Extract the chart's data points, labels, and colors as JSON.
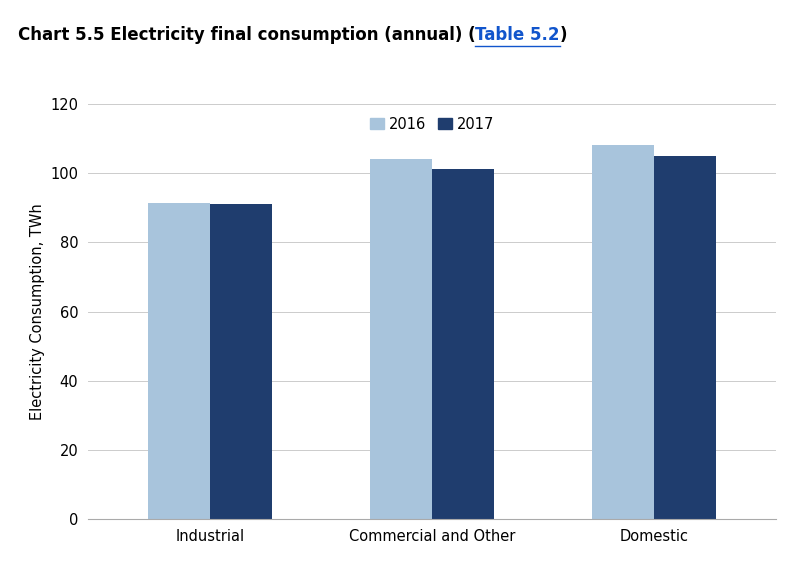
{
  "title_plain": "Chart 5.5 Electricity final consumption (annual) (",
  "title_link": "Table 5.2",
  "title_end": ")",
  "categories": [
    "Industrial",
    "Commercial and Other",
    "Domestic"
  ],
  "series": [
    {
      "label": "2016",
      "values": [
        91.5,
        104.0,
        108.0
      ],
      "color": "#a8c4dc"
    },
    {
      "label": "2017",
      "values": [
        91.2,
        101.2,
        105.0
      ],
      "color": "#1f3d6e"
    }
  ],
  "ylabel": "Electricity Consumption, TWh",
  "ylim": [
    0,
    120
  ],
  "yticks": [
    0,
    20,
    40,
    60,
    80,
    100,
    120
  ],
  "bar_width": 0.28,
  "background_color": "#ffffff",
  "title_fontsize": 12,
  "axis_fontsize": 10.5,
  "tick_fontsize": 10.5,
  "legend_fontsize": 10.5,
  "link_color": "#1155cc",
  "grid_color": "#cccccc",
  "spine_color": "#aaaaaa"
}
